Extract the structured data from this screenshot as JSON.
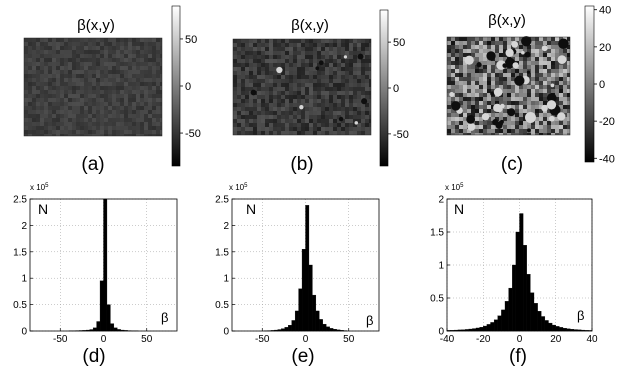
{
  "image_title": "β(x,y)",
  "chart_data": [
    {
      "type": "heatmap",
      "panel_label": "(a)",
      "title": "β(x,y)",
      "colormap": "gray",
      "clim": [
        -85,
        85
      ],
      "colorbar_ticks": [
        50,
        0,
        -50
      ],
      "field_mean_gray": "#3e3e3e",
      "noise": 0.06,
      "features": []
    },
    {
      "type": "heatmap",
      "panel_label": "(b)",
      "title": "β(x,y)",
      "colormap": "gray",
      "clim": [
        -85,
        85
      ],
      "colorbar_ticks": [
        50,
        0,
        -50
      ],
      "field_mean_gray": "#3a3a3a",
      "noise": 0.1,
      "features": [
        "sparse dark and light spots"
      ]
    },
    {
      "type": "heatmap",
      "panel_label": "(c)",
      "title": "β(x,y)",
      "colormap": "gray",
      "clim": [
        -42,
        42
      ],
      "colorbar_ticks": [
        40,
        20,
        0,
        -20,
        -40
      ],
      "field_mean_gray": "#6b6b6b",
      "noise": 0.35,
      "features": [
        "mottled texture with dark and light clusters"
      ]
    },
    {
      "type": "bar",
      "panel_label": "(d)",
      "ylabel": "N",
      "xlabel": "β",
      "exponent_label": "x 10",
      "exponent_power": "5",
      "xlim": [
        -85,
        85
      ],
      "ylim": [
        0,
        2.5
      ],
      "xticks": [
        -50,
        0,
        50
      ],
      "yticks": [
        0,
        0.5,
        1,
        1.5,
        2,
        2.5
      ],
      "ytick_labels": [
        "0",
        "0.5",
        "1",
        "1.5",
        "2",
        "2.5"
      ],
      "grid": true,
      "bin_width": 4,
      "bin_centers": [
        -38,
        -34,
        -30,
        -26,
        -22,
        -18,
        -14,
        -10,
        -6,
        -2,
        2,
        6,
        10,
        14,
        18,
        22,
        26,
        30,
        34,
        38
      ],
      "values": [
        0.005,
        0.006,
        0.008,
        0.01,
        0.013,
        0.018,
        0.028,
        0.06,
        0.18,
        0.95,
        2.5,
        0.5,
        0.14,
        0.06,
        0.03,
        0.018,
        0.012,
        0.008,
        0.006,
        0.005
      ]
    },
    {
      "type": "bar",
      "panel_label": "(e)",
      "ylabel": "N",
      "xlabel": "β",
      "exponent_label": "x 10",
      "exponent_power": "5",
      "xlim": [
        -85,
        85
      ],
      "ylim": [
        0,
        2.5
      ],
      "xticks": [
        -50,
        0,
        50
      ],
      "yticks": [
        0,
        0.5,
        1,
        1.5,
        2,
        2.5
      ],
      "ytick_labels": [
        "0",
        "0.5",
        "1",
        "1.5",
        "2",
        "2.5"
      ],
      "grid": true,
      "bin_width": 4,
      "bin_centers": [
        -46,
        -42,
        -38,
        -34,
        -30,
        -26,
        -22,
        -18,
        -14,
        -10,
        -6,
        -2,
        2,
        6,
        10,
        14,
        18,
        22,
        26,
        30,
        34,
        38,
        42,
        46
      ],
      "values": [
        0.005,
        0.008,
        0.012,
        0.018,
        0.028,
        0.045,
        0.07,
        0.11,
        0.2,
        0.38,
        0.8,
        1.55,
        2.38,
        1.25,
        0.68,
        0.38,
        0.22,
        0.13,
        0.08,
        0.05,
        0.035,
        0.022,
        0.014,
        0.008
      ]
    },
    {
      "type": "bar",
      "panel_label": "(f)",
      "ylabel": "N",
      "xlabel": "β",
      "exponent_label": "x 10",
      "exponent_power": "5",
      "xlim": [
        -40,
        40
      ],
      "ylim": [
        0,
        2
      ],
      "xticks": [
        -40,
        -20,
        0,
        20,
        40
      ],
      "yticks": [
        0,
        0.5,
        1,
        1.5,
        2
      ],
      "ytick_labels": [
        "0",
        "0.5",
        "1",
        "1.5",
        "2"
      ],
      "grid": true,
      "bin_width": 2,
      "bin_centers": [
        -39,
        -37,
        -35,
        -33,
        -31,
        -29,
        -27,
        -25,
        -23,
        -21,
        -19,
        -17,
        -15,
        -13,
        -11,
        -9,
        -7,
        -5,
        -3,
        -1,
        1,
        3,
        5,
        7,
        9,
        11,
        13,
        15,
        17,
        19,
        21,
        23,
        25,
        27,
        29,
        31,
        33,
        35,
        37,
        39
      ],
      "values": [
        0.01,
        0.012,
        0.014,
        0.017,
        0.02,
        0.024,
        0.03,
        0.037,
        0.046,
        0.058,
        0.075,
        0.1,
        0.13,
        0.17,
        0.23,
        0.32,
        0.45,
        0.65,
        1.0,
        1.5,
        1.78,
        1.3,
        0.86,
        0.58,
        0.42,
        0.3,
        0.22,
        0.16,
        0.12,
        0.09,
        0.07,
        0.055,
        0.043,
        0.034,
        0.027,
        0.022,
        0.018,
        0.014,
        0.011,
        0.009
      ]
    }
  ]
}
